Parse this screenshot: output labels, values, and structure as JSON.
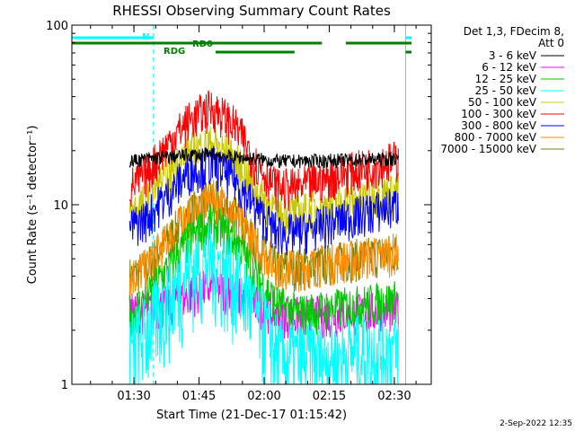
{
  "chart_data": {
    "type": "line",
    "title": "RHESSI Observing Summary Count Rates",
    "xlabel": "Start Time (21-Dec-17 01:15:42)",
    "ylabel": "Count Rate (s⁻¹ detector⁻¹)",
    "y_scale": "log",
    "ylim": [
      1,
      100
    ],
    "xlim_minutes": [
      75.7,
      158.5
    ],
    "x_ticks": [
      {
        "minutes": 90,
        "label": "01:30"
      },
      {
        "minutes": 105,
        "label": "01:45"
      },
      {
        "minutes": 120,
        "label": "02:00"
      },
      {
        "minutes": 135,
        "label": "02:15"
      },
      {
        "minutes": 150,
        "label": "02:30"
      },
      {
        "minutes": 165,
        "label": "02:45"
      }
    ],
    "y_ticks": [
      {
        "value": 1,
        "label": "1"
      },
      {
        "value": 10,
        "label": "10"
      },
      {
        "value": 100,
        "label": "100"
      }
    ],
    "legend_header": [
      "Det 1,3, FDecim 8,",
      "Att 0"
    ],
    "legend_position": "right",
    "data_window_minutes": [
      89.0,
      123.0,
      151.0
    ],
    "series": [
      {
        "name": "3 - 6 keV",
        "color": "#000000",
        "values": [
          17.5,
          18,
          18.5,
          19,
          19,
          18.5,
          18,
          17.5,
          17.5,
          18
        ]
      },
      {
        "name": "6 - 12 keV",
        "color": "#ff00ff",
        "values": [
          2.5,
          2.6,
          2.8,
          3.2,
          3.5,
          3.2,
          2.8,
          2.5,
          2.4,
          2.6
        ]
      },
      {
        "name": "12 - 25 keV",
        "color": "#00c800",
        "values": [
          2.5,
          3.0,
          4.5,
          6.5,
          8.0,
          6.5,
          4.0,
          2.8,
          2.5,
          3.0
        ]
      },
      {
        "name": "25 - 50 keV",
        "color": "#00ffff",
        "values": [
          1.6,
          2.0,
          3.0,
          4.5,
          5.0,
          4.0,
          2.5,
          1.5,
          1.4,
          1.6
        ]
      },
      {
        "name": "50 - 100 keV",
        "color": "#c8c800",
        "values": [
          9.0,
          10.5,
          15.0,
          20.0,
          22.0,
          18.0,
          12.0,
          9.0,
          9.0,
          12.0
        ]
      },
      {
        "name": "100 - 300 keV",
        "color": "#ff0000",
        "values": [
          12.5,
          15.0,
          22.0,
          30.0,
          35.0,
          28.0,
          17.0,
          12.5,
          12.5,
          18.0
        ]
      },
      {
        "name": "300 - 800 keV",
        "color": "#0000ff",
        "values": [
          7.5,
          8.5,
          11.5,
          15.5,
          17.0,
          14.0,
          9.5,
          7.0,
          7.0,
          10.0
        ]
      },
      {
        "name": "800 - 7000 keV",
        "color": "#ff8c00",
        "values": [
          4.0,
          4.5,
          6.5,
          9.0,
          11.0,
          9.0,
          6.0,
          4.5,
          4.5,
          5.5
        ]
      },
      {
        "name": "7000 - 15000 keV",
        "color": "#808000",
        "values": [
          4.0,
          4.5,
          6.5,
          9.0,
          11.0,
          9.0,
          6.0,
          4.5,
          4.5,
          5.5
        ]
      }
    ],
    "x_minutes": [
      89,
      93,
      98,
      103,
      108,
      113,
      118,
      123,
      128,
      151
    ],
    "flag_bars": [
      {
        "label": "N",
        "color": "#00ffff",
        "segments": [
          [
            75.7,
            94.5
          ],
          [
            152.6,
            170.0
          ]
        ]
      },
      {
        "label": "RD0",
        "color": "#008000",
        "segments": [
          [
            75.7,
            133.3
          ],
          [
            138.8,
            152.6
          ],
          [
            152.6,
            170.0
          ]
        ]
      },
      {
        "label": "RDG",
        "color": "#008000",
        "segments": [
          [
            108.8,
            127.0
          ],
          [
            152.6,
            170.0
          ]
        ]
      }
    ],
    "vertical_lines": [
      {
        "minutes": 94.5,
        "style": "dashed",
        "color": "#00ffff"
      },
      {
        "minutes": 152.6,
        "style": "solid",
        "color": "#00ffff"
      },
      {
        "minutes": 169.5,
        "style": "dashed",
        "color": "#00ffff"
      },
      {
        "minutes": 75.7,
        "style": "solid",
        "color": "#00ffff"
      }
    ]
  },
  "footer": {
    "date_stamp": "2-Sep-2022 12:35"
  }
}
